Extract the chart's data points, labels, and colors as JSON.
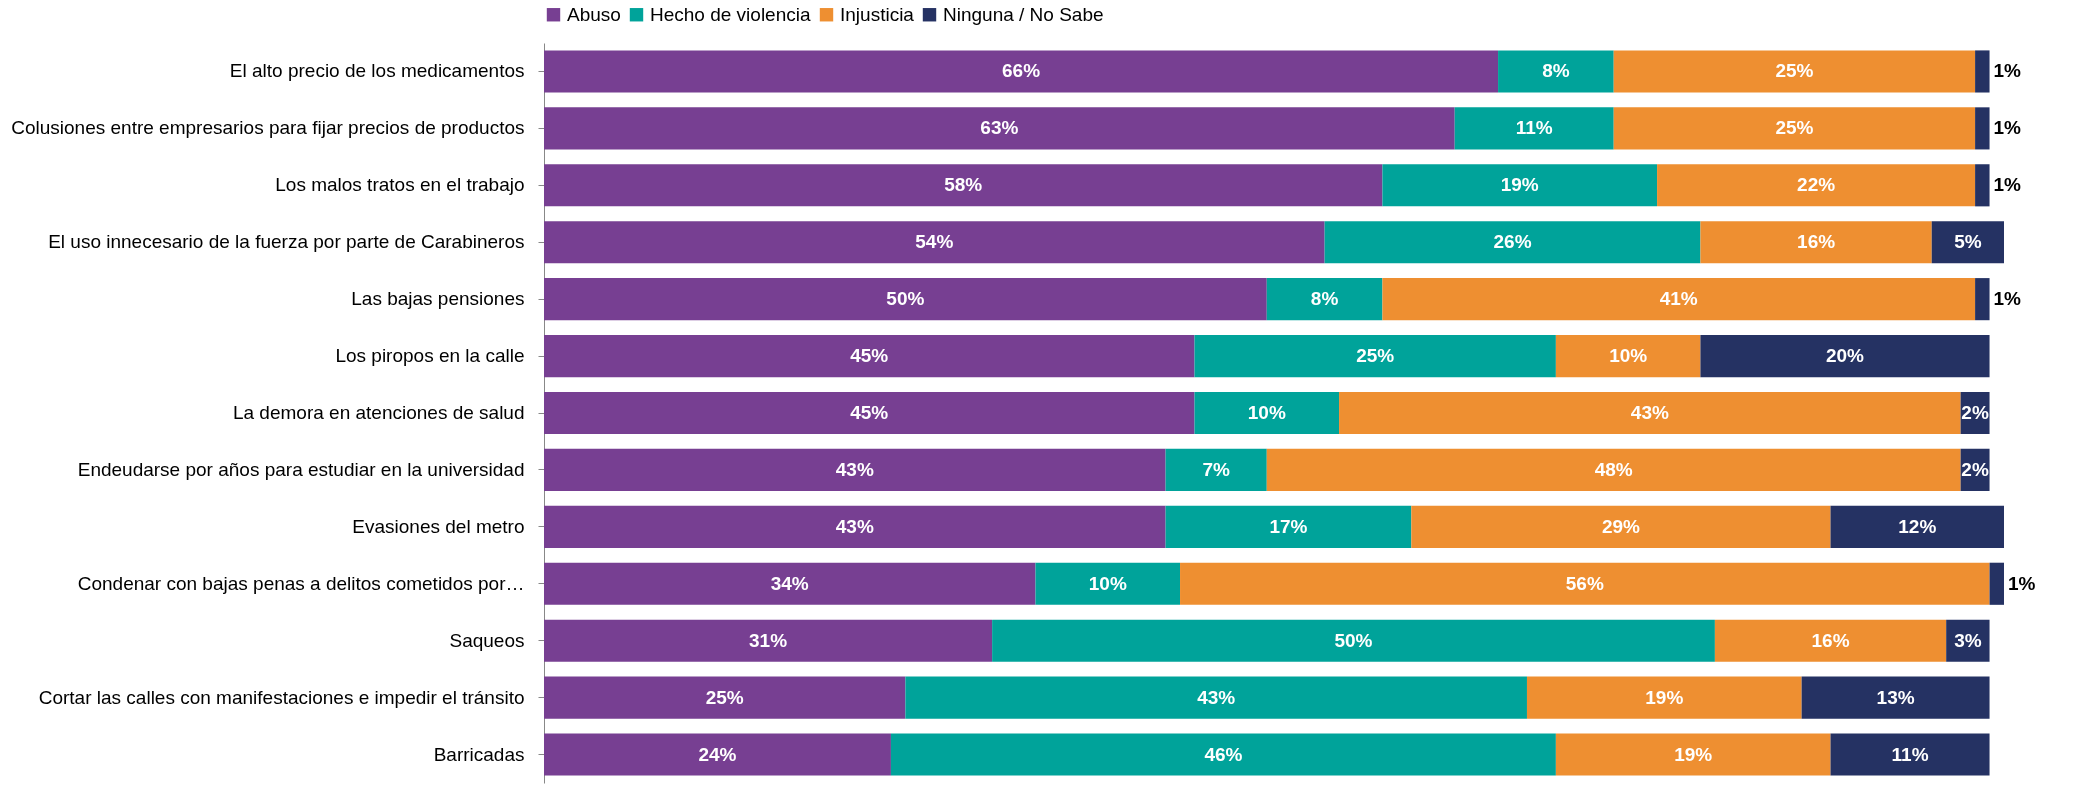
{
  "chart_data": {
    "type": "bar",
    "orientation": "horizontal",
    "stacked": true,
    "legend": "top",
    "grid": false,
    "categories": [
      "El alto precio de los medicamentos",
      "Colusiones entre empresarios para fijar precios de productos",
      "Los malos tratos en el trabajo",
      "El uso innecesario de la fuerza por parte de Carabineros",
      "Las bajas pensiones",
      "Los piropos en la calle",
      "La demora en atenciones de salud",
      "Endeudarse por años para estudiar en la universidad",
      "Evasiones del metro",
      "Condenar con bajas penas a delitos cometidos por…",
      "Saqueos",
      "Cortar las calles con manifestaciones e impedir el tránsito",
      "Barricadas"
    ],
    "series": [
      {
        "name": "Abuso",
        "color": "#773f92",
        "values": [
          66,
          63,
          58,
          54,
          50,
          45,
          45,
          43,
          43,
          34,
          31,
          25,
          24
        ],
        "value_labels": [
          "66%",
          "63%",
          "58%",
          "54%",
          "50%",
          "45%",
          "45%",
          "43%",
          "43%",
          "34%",
          "31%",
          "25%",
          "24%"
        ]
      },
      {
        "name": "Hecho de violencia",
        "color": "#00a39a",
        "values": [
          8,
          11,
          19,
          26,
          8,
          25,
          10,
          7,
          17,
          10,
          50,
          43,
          46
        ],
        "value_labels": [
          "8%",
          "11%",
          "19%",
          "26%",
          "8%",
          "25%",
          "10%",
          "7%",
          "17%",
          "10%",
          "50%",
          "43%",
          "46%"
        ]
      },
      {
        "name": "Injusticia",
        "color": "#ee8f31",
        "values": [
          25,
          25,
          22,
          16,
          41,
          10,
          43,
          48,
          29,
          56,
          16,
          19,
          19
        ],
        "value_labels": [
          "25%",
          "25%",
          "22%",
          "16%",
          "41%",
          "10%",
          "43%",
          "48%",
          "29%",
          "56%",
          "16%",
          "19%",
          "19%"
        ]
      },
      {
        "name": "Ninguna / No Sabe",
        "color": "#253263",
        "values": [
          1,
          1,
          1,
          5,
          1,
          20,
          2,
          2,
          12,
          1,
          3,
          13,
          11
        ],
        "value_labels": [
          "1%",
          "1%",
          "1%",
          "5%",
          "1%",
          "20%",
          "2%",
          "2%",
          "12%",
          "1%",
          "3%",
          "13%",
          "11%"
        ]
      }
    ]
  }
}
